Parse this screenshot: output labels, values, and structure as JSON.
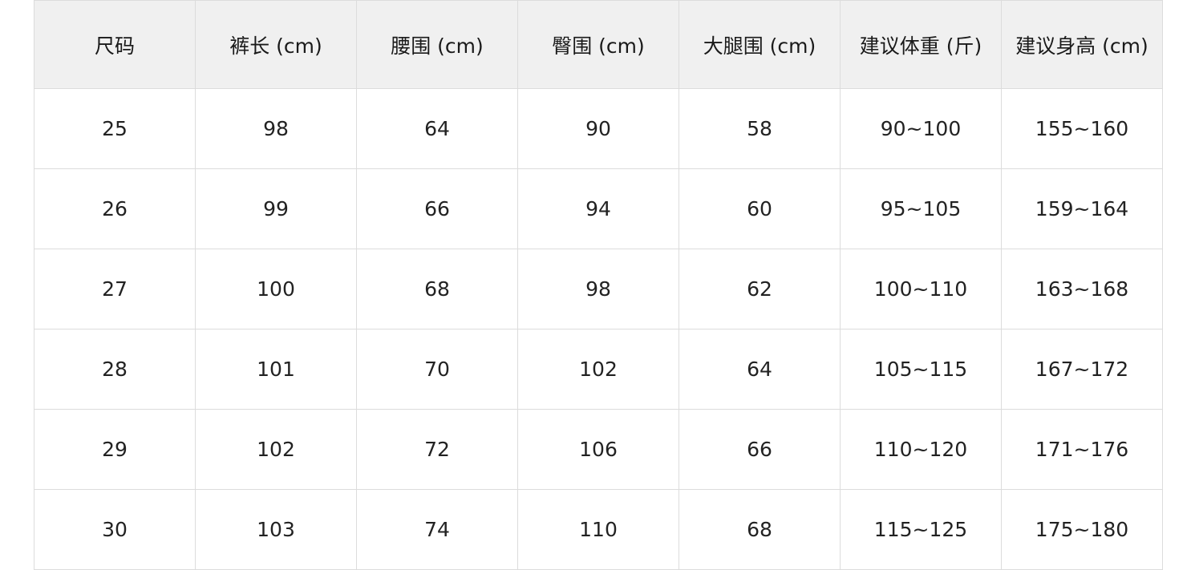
{
  "size_table": {
    "headers": [
      "尺码",
      "裤长 (cm)",
      "腰围 (cm)",
      "臀围 (cm)",
      "大腿围 (cm)",
      "建议体重 (斤)",
      "建议身高 (cm)"
    ],
    "rows": [
      [
        "25",
        "98",
        "64",
        "90",
        "58",
        "90~100",
        "155~160"
      ],
      [
        "26",
        "99",
        "66",
        "94",
        "60",
        "95~105",
        "159~164"
      ],
      [
        "27",
        "100",
        "68",
        "98",
        "62",
        "100~110",
        "163~168"
      ],
      [
        "28",
        "101",
        "70",
        "102",
        "64",
        "105~115",
        "167~172"
      ],
      [
        "29",
        "102",
        "72",
        "106",
        "66",
        "110~120",
        "171~176"
      ],
      [
        "30",
        "103",
        "74",
        "110",
        "68",
        "115~125",
        "175~180"
      ]
    ]
  }
}
